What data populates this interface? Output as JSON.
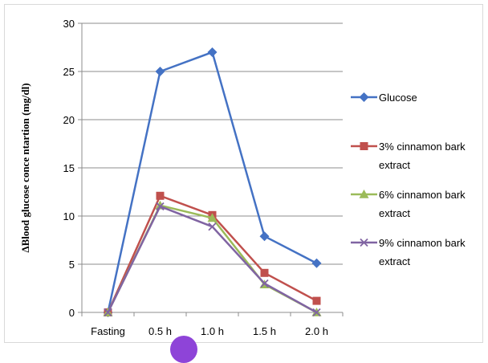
{
  "chart_data": {
    "type": "line",
    "title": "",
    "xlabel": "",
    "ylabel": "ΔBlood glucose conce ntartion  (mg/dl)",
    "categories": [
      "Fasting",
      "0.5 h",
      "1.0 h",
      "1.5 h",
      "2.0 h"
    ],
    "ylim": [
      0,
      30
    ],
    "yticks": [
      0,
      5,
      10,
      15,
      20,
      25,
      30
    ],
    "grid": "horizontal",
    "legend_position": "right",
    "series": [
      {
        "name": "Glucose",
        "legend_lines": [
          "Glucose"
        ],
        "color": "#4472c4",
        "marker": "diamond",
        "values": [
          0,
          25,
          27,
          7.9,
          5.1
        ]
      },
      {
        "name": "3% cinnamon bark extract",
        "legend_lines": [
          "3% cinnamon bark",
          "extract"
        ],
        "color": "#c0504d",
        "marker": "square",
        "values": [
          0,
          12.1,
          10.1,
          4.1,
          1.2
        ]
      },
      {
        "name": "6% cinnamon bark extract",
        "legend_lines": [
          "6% cinnamon bark",
          "extract"
        ],
        "color": "#9bbb59",
        "marker": "triangle",
        "values": [
          0,
          11.1,
          9.8,
          2.9,
          0
        ]
      },
      {
        "name": "9% cinnamon bark extract",
        "legend_lines": [
          "9% cinnamon bark",
          "extract"
        ],
        "color": "#8064a2",
        "marker": "x",
        "values": [
          0,
          11,
          8.9,
          3,
          0
        ]
      }
    ]
  },
  "decor": {
    "circle_color": "#8e44d8"
  }
}
